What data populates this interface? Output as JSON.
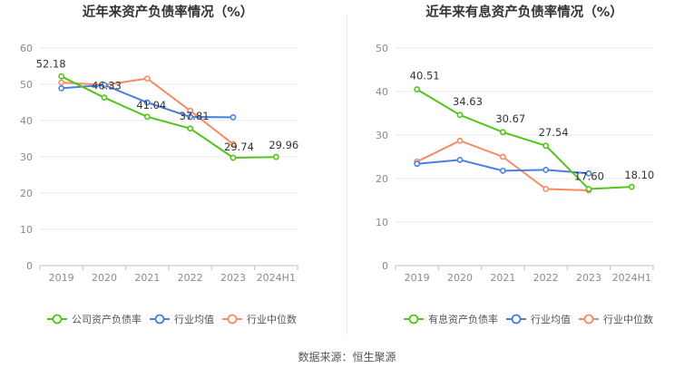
{
  "source_text": "数据来源：恒生聚源",
  "colors": {
    "company": "#52c41a",
    "avg": "#4a7fe0",
    "median": "#f28c64",
    "grid": "#e8e8e8",
    "axis": "#bfbfbf"
  },
  "chart_data": [
    {
      "type": "line",
      "title": "近年来资产负债率情况（%）",
      "categories": [
        "2019",
        "2020",
        "2021",
        "2022",
        "2023",
        "2024H1"
      ],
      "ylim": [
        0,
        60
      ],
      "yticks": [
        0,
        10,
        20,
        30,
        40,
        50,
        60
      ],
      "grid": true,
      "legend_position": "bottom",
      "series": [
        {
          "name": "公司资产负债率",
          "key": "company",
          "values": [
            52.18,
            46.33,
            41.04,
            37.81,
            29.74,
            29.96
          ],
          "labels": [
            "52.18",
            "46.33",
            "41.04",
            "37.81",
            "29.74",
            "29.96"
          ]
        },
        {
          "name": "行业均值",
          "key": "avg",
          "values": [
            48.9,
            49.8,
            45.0,
            41.0,
            40.9,
            null
          ],
          "labels": []
        },
        {
          "name": "行业中位数",
          "key": "median",
          "values": [
            50.5,
            49.8,
            51.6,
            42.7,
            33.5,
            null
          ],
          "labels": []
        }
      ]
    },
    {
      "type": "line",
      "title": "近年来有息资产负债率情况（%）",
      "categories": [
        "2019",
        "2020",
        "2021",
        "2022",
        "2023",
        "2024H1"
      ],
      "ylim": [
        0,
        50
      ],
      "yticks": [
        0,
        10,
        20,
        30,
        40,
        50
      ],
      "grid": true,
      "legend_position": "bottom",
      "series": [
        {
          "name": "有息资产负债率",
          "key": "company",
          "values": [
            40.51,
            34.63,
            30.67,
            27.54,
            17.6,
            18.1
          ],
          "labels": [
            "40.51",
            "34.63",
            "30.67",
            "27.54",
            "17.60",
            "18.10"
          ]
        },
        {
          "name": "行业均值",
          "key": "avg",
          "values": [
            23.4,
            24.3,
            21.8,
            22.0,
            21.2,
            null
          ],
          "labels": []
        },
        {
          "name": "行业中位数",
          "key": "median",
          "values": [
            23.9,
            28.7,
            25.0,
            17.6,
            17.3,
            null
          ],
          "labels": []
        }
      ]
    }
  ]
}
